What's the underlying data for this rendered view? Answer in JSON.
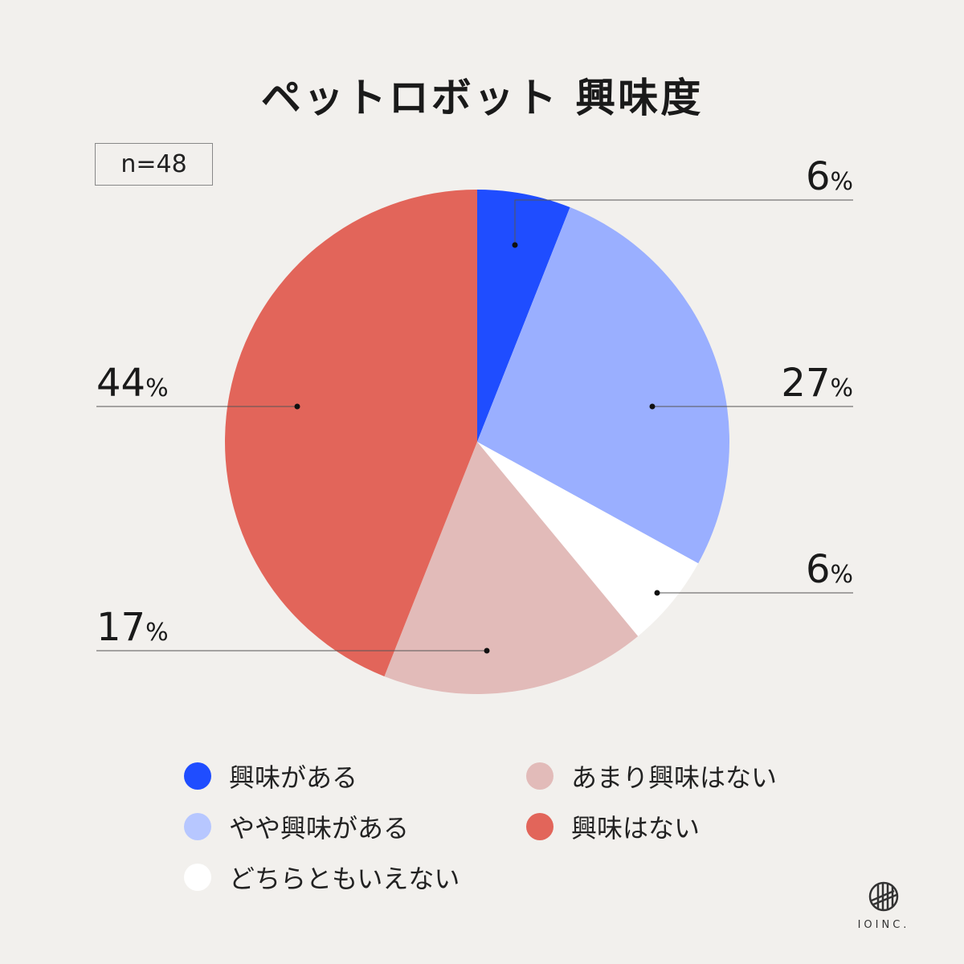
{
  "title": "ペットロボット 興味度",
  "sample_size": "n=48",
  "logo_text": "IOINC.",
  "chart_data": {
    "type": "pie",
    "title": "ペットロボット 興味度",
    "start": "top",
    "direction": "clockwise",
    "slices": [
      {
        "label": "興味がある",
        "value": 6,
        "display": "6%",
        "color": "#1f4dff"
      },
      {
        "label": "やや興味がある",
        "value": 27,
        "display": "27%",
        "color": "#9aafff"
      },
      {
        "label": "どちらともいえない",
        "value": 6,
        "display": "6%",
        "color": "#ffffff"
      },
      {
        "label": "あまり興味はない",
        "value": 17,
        "display": "17%",
        "color": "#e2bbb9"
      },
      {
        "label": "興味はない",
        "value": 44,
        "display": "44%",
        "color": "#e2655a"
      }
    ],
    "legend_placement": "bottom"
  },
  "legend": [
    {
      "label": "興味がある",
      "color": "#1f4dff"
    },
    {
      "label": "やや興味がある",
      "color": "#b7c7ff"
    },
    {
      "label": "どちらともいえない",
      "color": "#ffffff"
    },
    {
      "label": "あまり興味はない",
      "color": "#e2bbb9"
    },
    {
      "label": "興味はない",
      "color": "#e2655a"
    }
  ]
}
